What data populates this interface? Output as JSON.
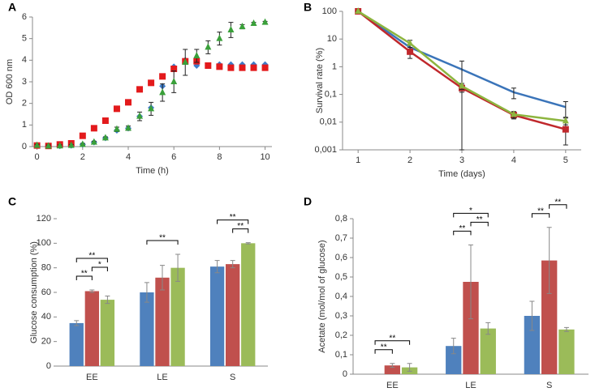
{
  "chart_data": [
    {
      "type": "scatter",
      "panel": "A",
      "xlabel": "Time (h)",
      "ylabel": "OD 600 nm",
      "x": [
        0,
        0.5,
        1,
        1.5,
        2,
        2.5,
        3,
        3.5,
        4,
        4.5,
        5,
        5.5,
        6,
        6.5,
        7,
        7.5,
        8,
        8.5,
        9,
        9.5,
        10
      ],
      "series": [
        {
          "color": "#3d7cc9",
          "marker": "diamond",
          "values": [
            0.05,
            0.03,
            0.03,
            0.05,
            0.1,
            0.2,
            0.4,
            0.75,
            0.85,
            1.4,
            1.8,
            2.8,
            3.7,
            4.0,
            3.75,
            3.75,
            3.8,
            3.8,
            3.8,
            3.8,
            3.8
          ]
        },
        {
          "color": "#e31a1c",
          "marker": "square",
          "values": [
            0.05,
            0.03,
            0.1,
            0.15,
            0.5,
            0.85,
            1.2,
            1.75,
            2.05,
            2.65,
            2.95,
            3.25,
            3.6,
            3.95,
            3.95,
            3.75,
            3.7,
            3.65,
            3.65,
            3.65,
            3.65
          ]
        },
        {
          "color": "#3aa03a",
          "marker": "triangle",
          "values": [
            0.05,
            0.02,
            0.03,
            0.05,
            0.1,
            0.2,
            0.4,
            0.8,
            0.85,
            1.4,
            1.75,
            2.5,
            3.0,
            3.9,
            4.2,
            4.6,
            5.0,
            5.4,
            5.55,
            5.7,
            5.75
          ],
          "errors": [
            0.05,
            0.05,
            0.05,
            0.05,
            0.05,
            0.05,
            0.05,
            0.1,
            0.1,
            0.2,
            0.3,
            0.4,
            0.5,
            0.6,
            0.3,
            0.3,
            0.3,
            0.35,
            0.1,
            0.05,
            0.05
          ]
        }
      ],
      "xlim": [
        -0.2,
        10.3
      ],
      "xticks": [
        0,
        2,
        4,
        6,
        8,
        10
      ],
      "ylim": [
        0,
        6
      ],
      "yticks": [
        0,
        1,
        2,
        3,
        4,
        5,
        6
      ]
    },
    {
      "type": "line",
      "panel": "B",
      "xlabel": "Time (days)",
      "ylabel": "Survival rate (%)",
      "yscale": "log",
      "x": [
        1,
        2,
        3,
        4,
        5
      ],
      "series": [
        {
          "color": "#3a74b9",
          "marker": "none",
          "values": [
            100,
            5,
            0.8,
            0.12,
            0.035
          ],
          "errors": [
            0,
            1.5,
            0.8,
            0.05,
            0.02
          ]
        },
        {
          "color": "#c0282c",
          "marker": "square",
          "values": [
            100,
            3.5,
            0.17,
            0.018,
            0.0055
          ],
          "errors": [
            0,
            1.5,
            0.05,
            0.005,
            0.004
          ]
        },
        {
          "color": "#8db53f",
          "marker": "triangle",
          "values": [
            100,
            7,
            0.2,
            0.019,
            0.011
          ],
          "errors": [
            0,
            2,
            0.05,
            0.005,
            0.003
          ]
        }
      ],
      "xlim": [
        0.7,
        5.3
      ],
      "xticks": [
        1,
        2,
        3,
        4,
        5
      ],
      "ylim": [
        0.001,
        100
      ],
      "yticks": [
        {
          "value": 0.001,
          "label": "0,001"
        },
        {
          "value": 0.01,
          "label": "0,01"
        },
        {
          "value": 0.1,
          "label": "0,1"
        },
        1,
        10,
        100
      ]
    },
    {
      "type": "bar",
      "panel": "C",
      "ylabel": "Glucose consumption (%)",
      "categories": [
        "EE",
        "LE",
        "S"
      ],
      "series": [
        {
          "color": "#4f81bd",
          "values": [
            35,
            60,
            81
          ],
          "errors": [
            2,
            8,
            5
          ]
        },
        {
          "color": "#c0504d",
          "values": [
            61,
            72,
            83
          ],
          "errors": [
            1,
            10,
            3
          ]
        },
        {
          "color": "#9bbb59",
          "values": [
            54,
            80,
            100
          ],
          "errors": [
            3,
            11,
            0.5
          ]
        }
      ],
      "brackets": [
        {
          "label": "**",
          "group": 0,
          "from": 0,
          "to": 1
        },
        {
          "label": "*",
          "group": 0,
          "from": 1,
          "to": 2
        },
        {
          "label": "**",
          "group": 0,
          "from": 0,
          "to": 2
        },
        {
          "label": "**",
          "group": 1,
          "from": 0,
          "to": 2
        },
        {
          "label": "**",
          "group": 2,
          "from": 1,
          "to": 2
        },
        {
          "label": "**",
          "group": 2,
          "from": 0,
          "to": 2
        }
      ],
      "ylim": [
        0,
        120
      ],
      "yticks": [
        0,
        20,
        40,
        60,
        80,
        100,
        120
      ]
    },
    {
      "type": "bar",
      "panel": "D",
      "ylabel": "Acetate (mol/mol of glucose)",
      "categories": [
        "EE",
        "LE",
        "S"
      ],
      "series": [
        {
          "color": "#4f81bd",
          "values": [
            0,
            0.145,
            0.3
          ],
          "errors": [
            0,
            0.04,
            0.075
          ]
        },
        {
          "color": "#c0504d",
          "values": [
            0.045,
            0.475,
            0.585
          ],
          "errors": [
            0.01,
            0.19,
            0.17
          ]
        },
        {
          "color": "#9bbb59",
          "values": [
            0.035,
            0.235,
            0.23
          ],
          "errors": [
            0.02,
            0.03,
            0.01
          ]
        }
      ],
      "brackets": [
        {
          "label": "**",
          "group": 0,
          "from": 0,
          "to": 1
        },
        {
          "label": "**",
          "group": 0,
          "from": 0,
          "to": 2
        },
        {
          "label": "**",
          "group": 1,
          "from": 0,
          "to": 1
        },
        {
          "label": "**",
          "group": 1,
          "from": 1,
          "to": 2
        },
        {
          "label": "*",
          "group": 1,
          "from": 0,
          "to": 2
        },
        {
          "label": "**",
          "group": 2,
          "from": 0,
          "to": 1
        },
        {
          "label": "**",
          "group": 2,
          "from": 1,
          "to": 2
        }
      ],
      "ylim": [
        0,
        0.8
      ],
      "yticks": [
        0,
        {
          "value": 0.1,
          "label": "0,1"
        },
        {
          "value": 0.2,
          "label": "0,2"
        },
        {
          "value": 0.3,
          "label": "0,3"
        },
        {
          "value": 0.4,
          "label": "0,4"
        },
        {
          "value": 0.5,
          "label": "0,5"
        },
        {
          "value": 0.6,
          "label": "0,6"
        },
        {
          "value": 0.7,
          "label": "0,7"
        },
        {
          "value": 0.8,
          "label": "0,8"
        }
      ]
    }
  ]
}
